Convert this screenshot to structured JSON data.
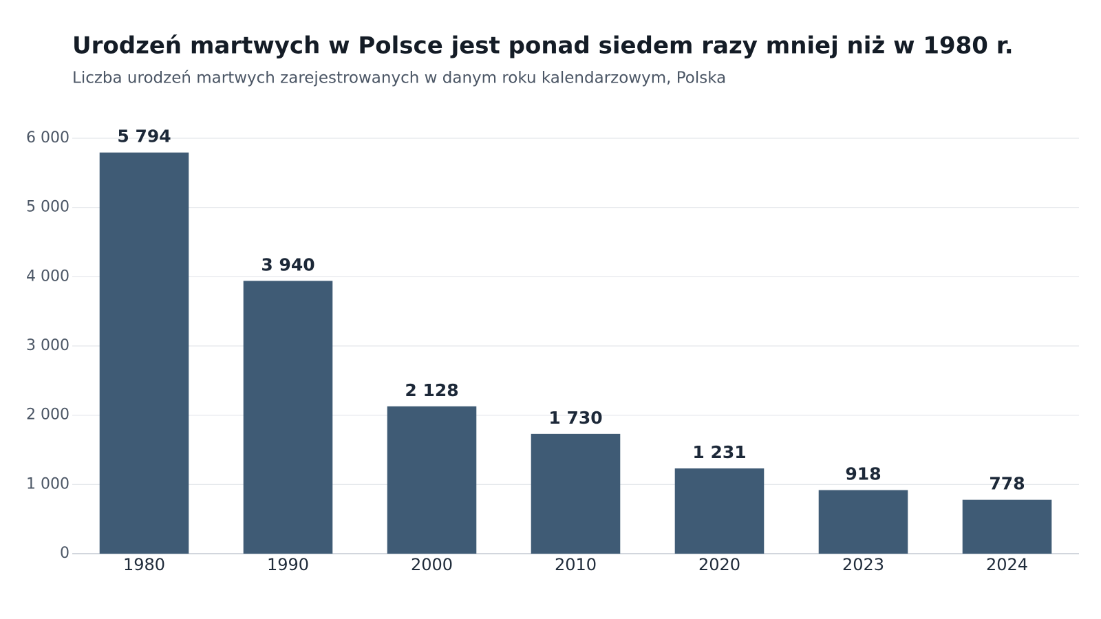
{
  "chart_data": {
    "type": "bar",
    "title": "Urodzeń martwych w Polsce jest ponad siedem razy mniej niż w 1980 r.",
    "subtitle": "Liczba urodzeń martwych zarejestrowanych w danym roku kalendarzowym, Polska",
    "categories": [
      "1980",
      "1990",
      "2000",
      "2010",
      "2020",
      "2023",
      "2024"
    ],
    "values": [
      5794,
      3940,
      2128,
      1730,
      1231,
      918,
      778
    ],
    "value_labels": [
      "5 794",
      "3 940",
      "2 128",
      "1 730",
      "1 231",
      "918",
      "778"
    ],
    "color": "#3f5b75",
    "ylim": [
      0,
      6000
    ],
    "yticks": [
      0,
      {
        "value": 1000,
        "label": "1 000"
      },
      {
        "value": 2000,
        "label": "2 000"
      },
      {
        "value": 3000,
        "label": "3 000"
      },
      {
        "value": 4000,
        "label": "4 000"
      },
      {
        "value": 5000,
        "label": "5 000"
      },
      {
        "value": 6000,
        "label": "6 000"
      }
    ],
    "grid": true
  }
}
